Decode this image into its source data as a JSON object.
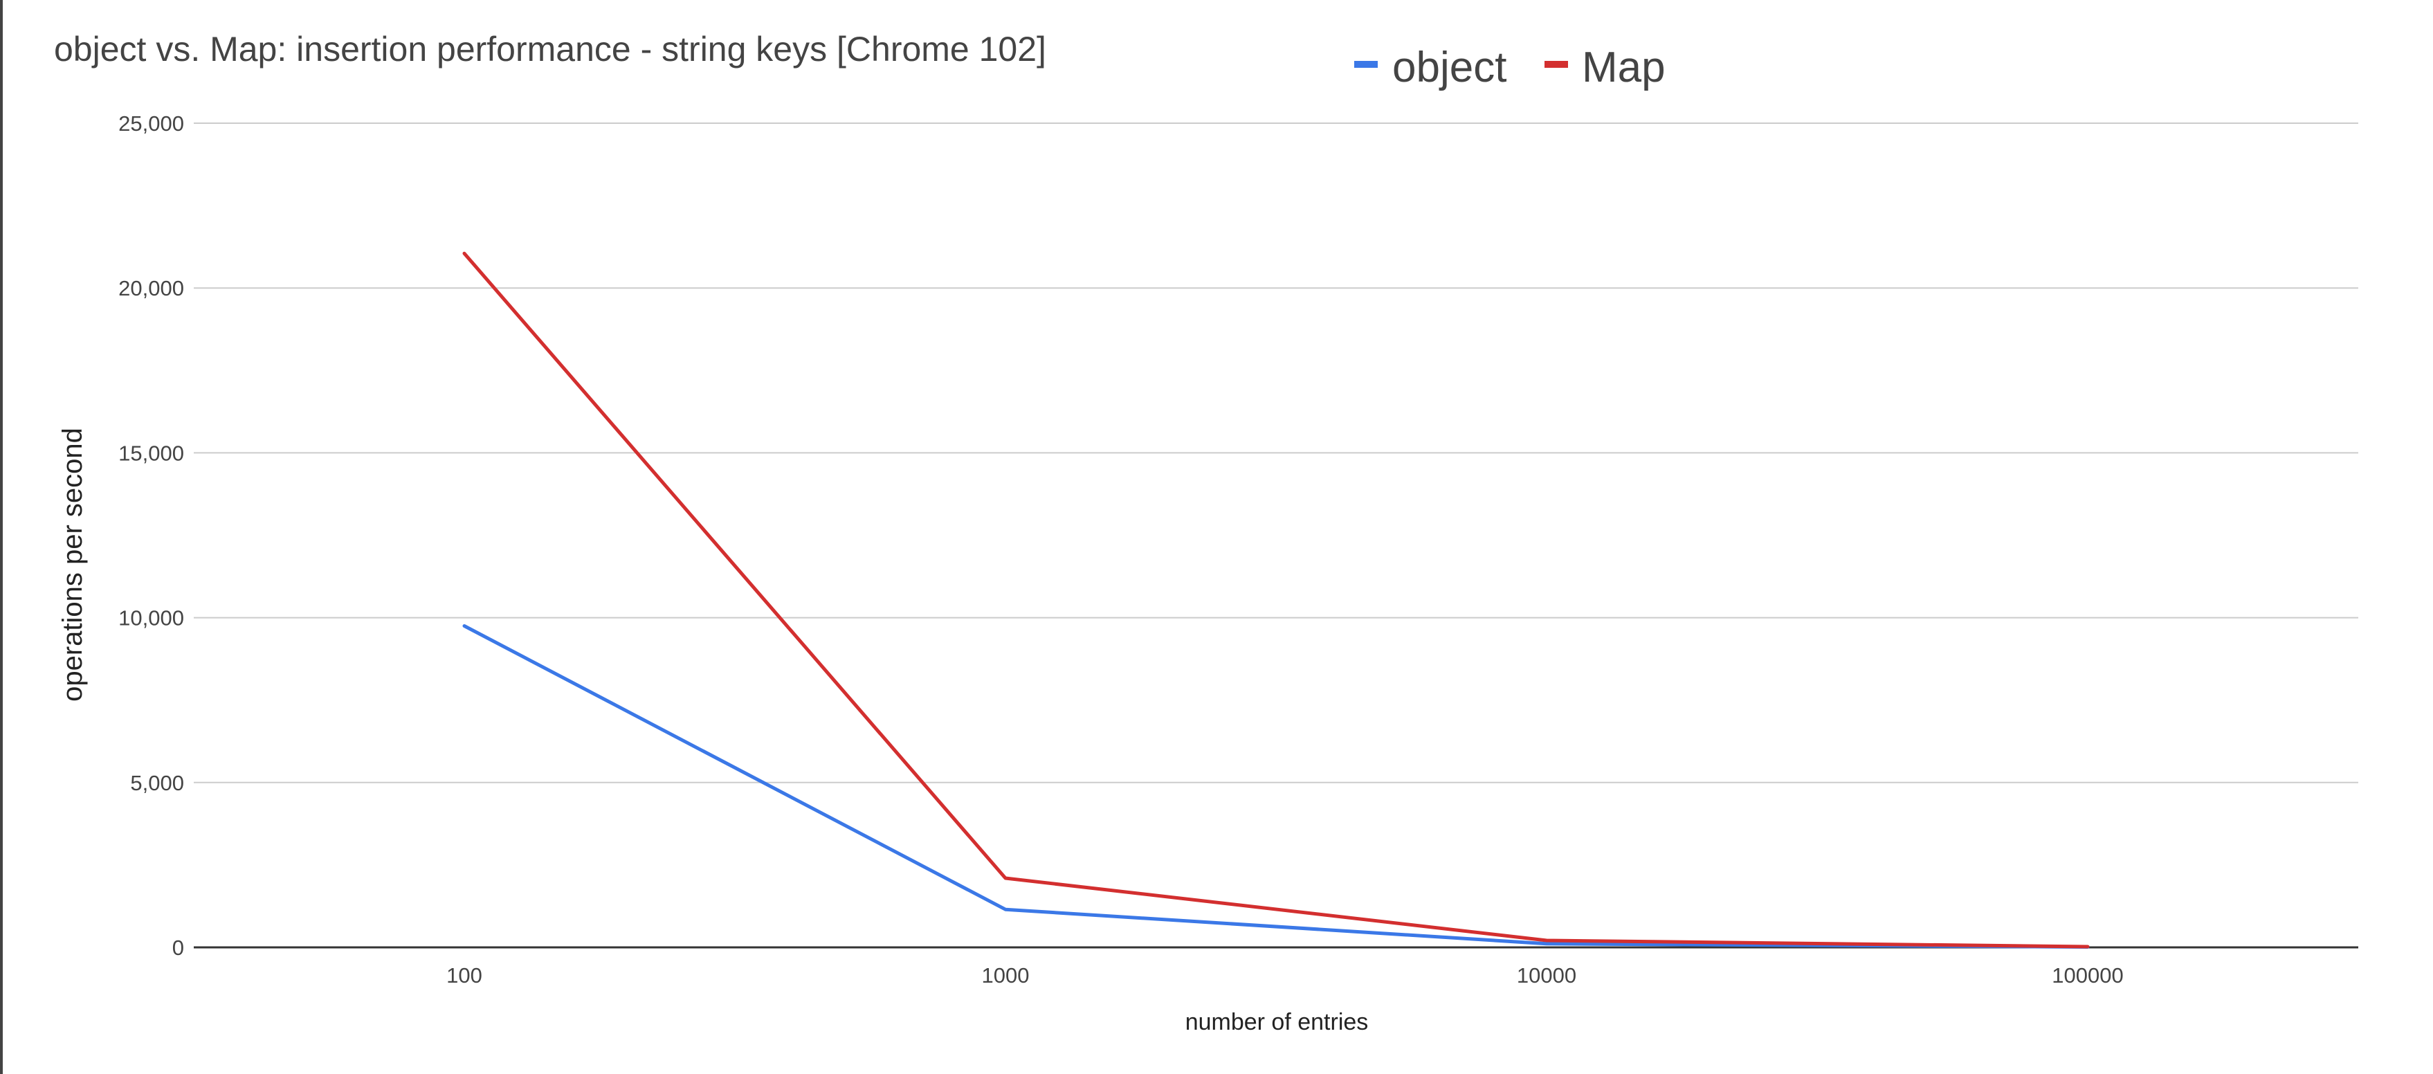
{
  "chart_data": {
    "type": "line",
    "title": "object vs. Map: insertion performance - string keys [Chrome 102]",
    "xlabel": "number of entries",
    "ylabel": "operations per second",
    "categories": [
      "100",
      "1000",
      "10000",
      "100000"
    ],
    "y_ticks": [
      "0",
      "5,000",
      "10,000",
      "15,000",
      "20,000",
      "25,000"
    ],
    "ylim": [
      0,
      25000
    ],
    "grid": true,
    "legend_position": "top",
    "series": [
      {
        "name": "object",
        "color": "#3b78e7",
        "values": [
          9750,
          1150,
          110,
          10
        ]
      },
      {
        "name": "Map",
        "color": "#d32f2f",
        "values": [
          21050,
          2100,
          210,
          20
        ]
      }
    ]
  }
}
